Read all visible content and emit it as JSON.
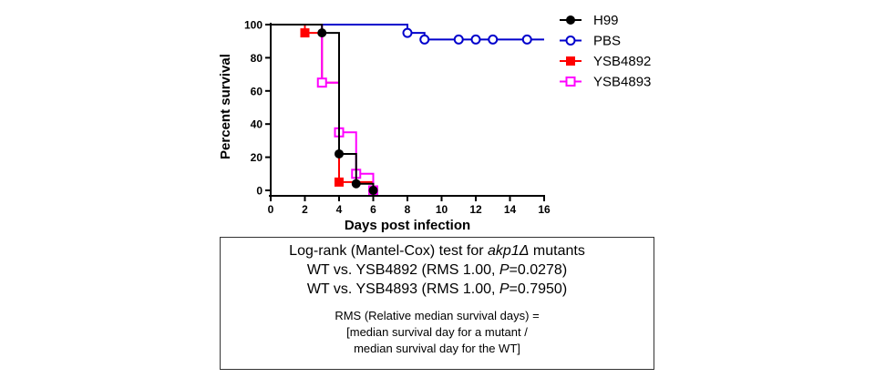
{
  "chart_data": {
    "type": "line",
    "subtype": "kaplan-meier step survival",
    "xlabel": "Days post infection",
    "ylabel": "Percent survival",
    "xlim": [
      0,
      16
    ],
    "ylim": [
      0,
      100
    ],
    "xticks": [
      "0",
      "2",
      "4",
      "6",
      "8",
      "10",
      "12",
      "14",
      "16"
    ],
    "yticks": [
      "0",
      "20",
      "40",
      "60",
      "80",
      "100"
    ],
    "legend_position": "right",
    "series": [
      {
        "name": "H99",
        "color": "#000000",
        "marker": "filled-circle",
        "steps": [
          [
            0,
            100
          ],
          [
            3,
            95
          ],
          [
            4,
            22
          ],
          [
            5,
            4
          ],
          [
            6,
            0
          ]
        ],
        "markers": [
          [
            3,
            95
          ],
          [
            4,
            22
          ],
          [
            5,
            4
          ],
          [
            6,
            0
          ]
        ]
      },
      {
        "name": "PBS",
        "color": "#0000cc",
        "marker": "open-circle",
        "steps": [
          [
            0,
            100
          ],
          [
            8,
            95
          ],
          [
            9,
            91
          ],
          [
            16,
            91
          ]
        ],
        "markers": [
          [
            8,
            95
          ],
          [
            9,
            91
          ],
          [
            11,
            91
          ],
          [
            12,
            91
          ],
          [
            13,
            91
          ],
          [
            15,
            91
          ]
        ]
      },
      {
        "name": "YSB4892",
        "color": "#ff0000",
        "marker": "filled-square",
        "steps": [
          [
            0,
            100
          ],
          [
            2,
            95
          ],
          [
            3,
            65
          ],
          [
            4,
            5
          ],
          [
            5,
            5
          ],
          [
            6,
            0
          ]
        ],
        "markers": [
          [
            2,
            95
          ],
          [
            4,
            5
          ],
          [
            6,
            0
          ]
        ]
      },
      {
        "name": "YSB4893",
        "color": "#ff00ff",
        "marker": "open-square",
        "steps": [
          [
            0,
            100
          ],
          [
            3,
            65
          ],
          [
            4,
            35
          ],
          [
            5,
            10
          ],
          [
            6,
            0
          ]
        ],
        "markers": [
          [
            3,
            65
          ],
          [
            4,
            35
          ],
          [
            5,
            10
          ],
          [
            6,
            0
          ]
        ]
      }
    ]
  },
  "stats": {
    "title_prefix": "Log-rank (Mantel-Cox) test for ",
    "title_gene": "akp1Δ",
    "title_suffix": " mutants",
    "rows": [
      {
        "prefix": "WT vs. YSB4892 (RMS 1.00, ",
        "p_label": "P",
        "p_value": "=0.0278)"
      },
      {
        "prefix": "WT vs. YSB4893 (RMS 1.00, ",
        "p_label": "P",
        "p_value": "=0.7950)"
      }
    ],
    "rms_lines": [
      "RMS (Relative median survival days) =",
      "[median survival day for a mutant  /",
      "median survival day for the WT]"
    ]
  }
}
